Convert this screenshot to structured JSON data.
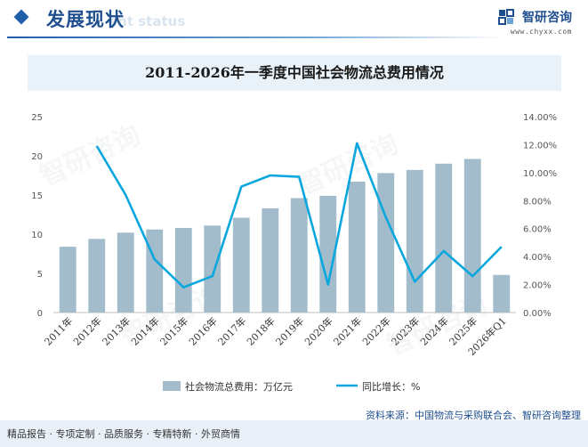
{
  "header": {
    "title": "发展现状",
    "subtitle": "ent status"
  },
  "brand": {
    "name": "智研咨询",
    "url": "www.chyxx.com",
    "watermark": "智研咨询"
  },
  "footer": {
    "services": "精品报告 · 专项定制 · 品质服务 · 专精特新 · 外贸商情",
    "source": "资料来源：中国物流与采购联合会、智研咨询整理"
  },
  "colors": {
    "bar": "#a3bccb",
    "line": "#0aa7de",
    "accent": "#1f4f8f"
  },
  "chart_data": {
    "type": "bar",
    "title": "2011-2026年一季度中国社会物流总费用情况",
    "categories": [
      "2011年",
      "2012年",
      "2013年",
      "2014年",
      "2015年",
      "2016年",
      "2017年",
      "2018年",
      "2019年",
      "2020年",
      "2021年",
      "2022年",
      "2023年",
      "2024年",
      "2025年",
      "2026年Q1"
    ],
    "series": [
      {
        "name": "社会物流总费用：万亿元",
        "type": "bar",
        "axis": "left",
        "values": [
          8.4,
          9.4,
          10.2,
          10.6,
          10.8,
          11.1,
          12.1,
          13.3,
          14.6,
          14.9,
          16.7,
          17.8,
          18.2,
          19.0,
          19.6,
          4.8
        ]
      },
      {
        "name": "同比增长：%",
        "type": "line",
        "axis": "right",
        "values": [
          null,
          11.9,
          8.4,
          3.8,
          1.8,
          2.6,
          9.0,
          9.8,
          9.7,
          2.0,
          12.1,
          6.8,
          2.2,
          4.4,
          2.6,
          4.7
        ]
      }
    ],
    "y_left": {
      "min": 0,
      "max": 25,
      "ticks": [
        "0",
        "5",
        "10",
        "15",
        "20",
        "25"
      ]
    },
    "y_right": {
      "min": 0,
      "max": 14,
      "ticks": [
        "0.00%",
        "2.00%",
        "4.00%",
        "6.00%",
        "8.00%",
        "10.00%",
        "12.00%",
        "14.00%"
      ]
    },
    "grid": false,
    "legend_position": "bottom"
  }
}
